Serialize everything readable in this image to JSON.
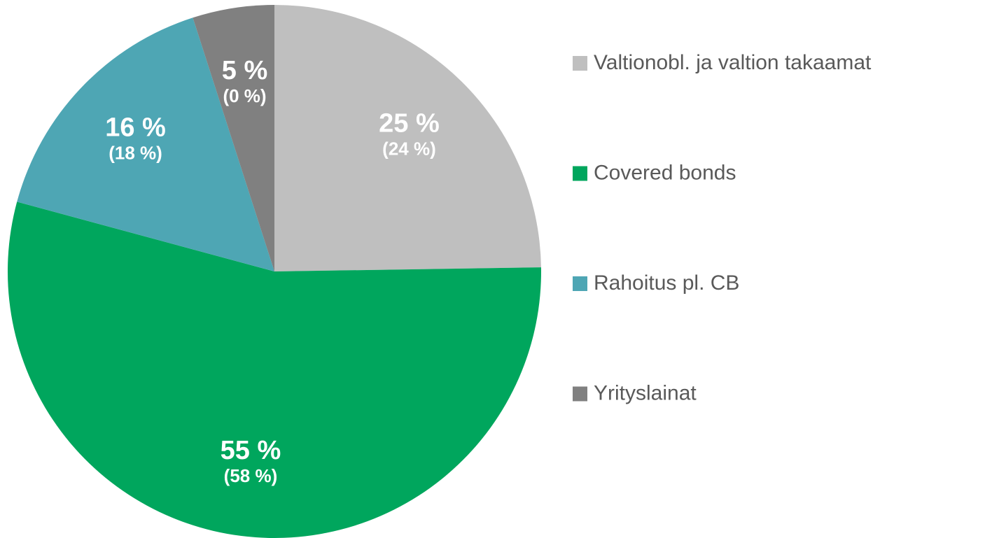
{
  "chart_data": {
    "type": "pie",
    "categories": [
      "Valtionobl. ja valtion takaamat",
      "Covered bonds",
      "Rahoitus pl. CB",
      "Yrityslainat"
    ],
    "values": [
      25,
      55,
      16,
      5
    ],
    "value_labels": [
      "25 %",
      "55 %",
      "16 %",
      "5 %"
    ],
    "previous_values": [
      24,
      58,
      18,
      0
    ],
    "previous_value_labels": [
      "(24 %)",
      "(58 %)",
      "(18 %)",
      "(0 %)"
    ],
    "colors": [
      "#bfbfbf",
      "#00a65d",
      "#4ea6b4",
      "#808080"
    ],
    "legend": "right"
  }
}
